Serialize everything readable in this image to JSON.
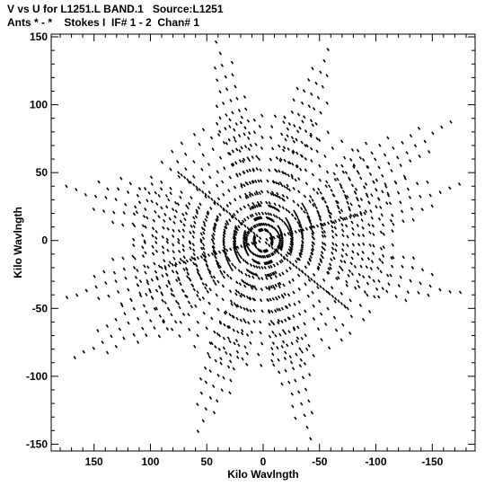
{
  "header": {
    "line1": "V vs U for L1251.L BAND.1   Source:L1251",
    "line2": "Ants * - *    Stokes I  IF# 1 - 2  Chan# 1"
  },
  "chart_data": {
    "type": "scatter",
    "title": "V vs U for L1251.L BAND.1   Source:L1251",
    "subtitle": "Ants * - *    Stokes I  IF# 1 - 2  Chan# 1",
    "xlabel": "Kilo Wavlngth",
    "ylabel": "Kilo Wavlngth",
    "xlim": [
      188,
      -188
    ],
    "ylim": [
      -155,
      152
    ],
    "x_reversed": true,
    "xticks": [
      150,
      100,
      50,
      0,
      -50,
      -100,
      -150
    ],
    "yticks": [
      150,
      100,
      50,
      0,
      -50,
      -100,
      -150
    ],
    "xtick_labels": [
      "150",
      "100",
      "50",
      "0",
      "-50",
      "-100",
      "-150"
    ],
    "ytick_labels": [
      "150",
      "100",
      "50",
      "0",
      "-50",
      "-100",
      "-150"
    ],
    "grid": false,
    "marker": "short dashes",
    "color": "#000000",
    "arms": [
      {
        "u": 42,
        "v": 150
      },
      {
        "u": -42,
        "v": -150
      },
      {
        "u": -170,
        "v": 88
      },
      {
        "u": 170,
        "v": -88
      },
      {
        "u": -180,
        "v": -40
      },
      {
        "u": 180,
        "v": 40
      },
      {
        "u": 60,
        "v": -148
      },
      {
        "u": -60,
        "v": 148
      },
      {
        "u": 180,
        "v": -42
      },
      {
        "u": -180,
        "v": 42
      }
    ],
    "dense_spokes": [
      {
        "u": 75,
        "v": 50
      },
      {
        "u": -75,
        "v": -50
      },
      {
        "u": -90,
        "v": 20
      },
      {
        "u": 90,
        "v": -20
      }
    ]
  }
}
